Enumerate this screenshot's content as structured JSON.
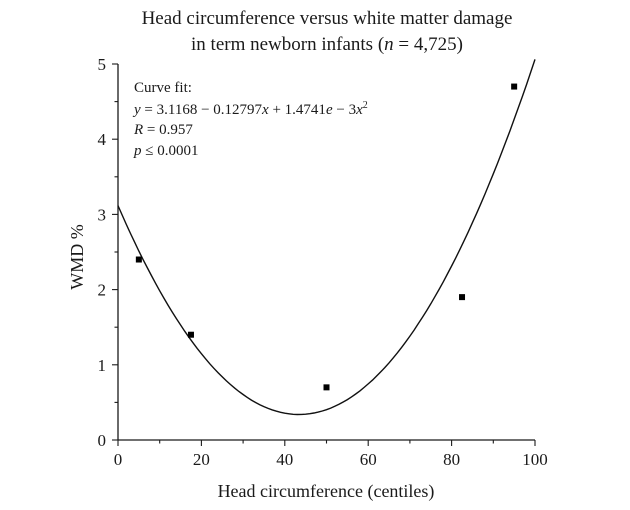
{
  "chart_data": {
    "type": "scatter",
    "title_line1": "Head circumference versus white matter damage",
    "title_line2_prefix": "in term newborn infants (",
    "title_line2_n": "n",
    "title_line2_suffix": " = 4,725)",
    "xlabel": "Head circumference (centiles)",
    "ylabel": "WMD %",
    "xlim": [
      0,
      100
    ],
    "ylim": [
      0,
      5
    ],
    "xticks": [
      0,
      20,
      40,
      60,
      80,
      100
    ],
    "yticks": [
      0,
      1,
      2,
      3,
      4,
      5
    ],
    "grid": false,
    "series": [
      {
        "points": [
          {
            "x": 5,
            "y": 2.4
          },
          {
            "x": 17.5,
            "y": 1.4
          },
          {
            "x": 50,
            "y": 0.7
          },
          {
            "x": 82.5,
            "y": 1.9
          },
          {
            "x": 95,
            "y": 4.7
          }
        ]
      }
    ],
    "curve_fit": {
      "type": "quadratic",
      "label": "Curve fit:",
      "equation_text": "y = 3.1168 − 0.12797x + 1.4741e − 3x",
      "equation_y": "y",
      "equation_body": " = 3.1168 − 0.12797",
      "equation_x": "x",
      "equation_tail": " + 1.4741",
      "equation_e": "e",
      "equation_minus": " − 3",
      "equation_x2": "x",
      "equation_sup": "2",
      "intercept": 3.1168,
      "linear": -0.12797,
      "quadratic": 0.0014741,
      "r_label": "R",
      "r_value": " = 0.957",
      "p_label": "p",
      "p_value": " ≤ 0.0001"
    },
    "colors": {
      "marker": "#000000",
      "line": "#111111",
      "axis": "#1a1a1a"
    }
  }
}
